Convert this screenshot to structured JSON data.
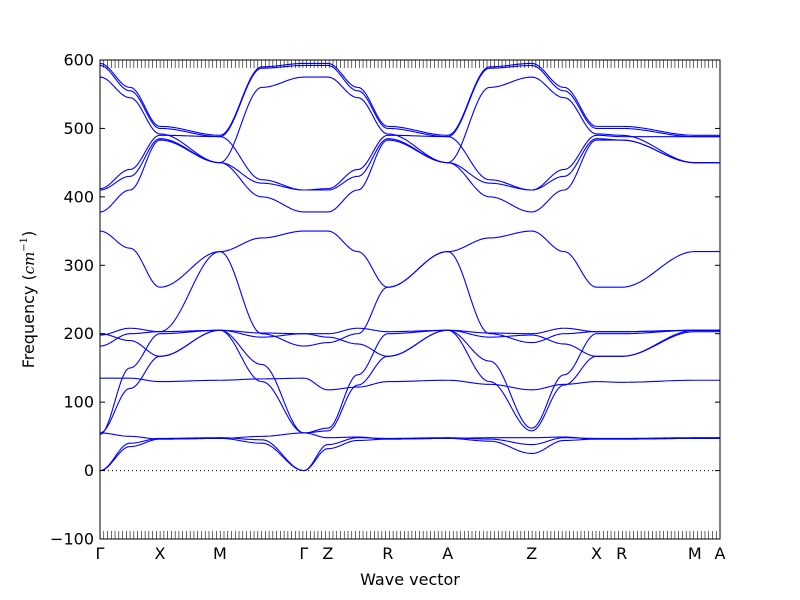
{
  "chart_data": {
    "type": "line",
    "title": "",
    "xlabel": "Wave vector",
    "ylabel": {
      "prefix": "Frequency (",
      "unit_base": "cm",
      "unit_exp": "−1",
      "suffix": ")"
    },
    "ylim": [
      -100,
      600
    ],
    "yticks": [
      -100,
      0,
      100,
      200,
      300,
      400,
      500,
      600
    ],
    "grid": false,
    "legend": "none",
    "zero_line": true,
    "path_points": [
      {
        "label": "Γ",
        "x": 0
      },
      {
        "label": "X",
        "x": 0.5
      },
      {
        "label": "M",
        "x": 1.0
      },
      {
        "label": "Γ",
        "x": 1.7
      },
      {
        "label": "Z",
        "x": 1.9
      },
      {
        "label": "R",
        "x": 2.4
      },
      {
        "label": "A",
        "x": 2.9
      },
      {
        "label": "Z",
        "x": 3.6
      },
      {
        "label": "X",
        "x": 4.14
      },
      {
        "label": "R",
        "x": 4.35
      },
      {
        "label": "M",
        "x": 4.96
      },
      {
        "label": "A",
        "x": 5.17
      }
    ],
    "x_range": [
      0,
      5.17
    ],
    "series_color": "#0000ff",
    "bands": [
      [
        [
          0,
          595
        ],
        [
          0.25,
          560
        ],
        [
          0.5,
          503
        ],
        [
          1.0,
          490
        ],
        [
          1.35,
          590
        ],
        [
          1.7,
          595
        ],
        [
          1.9,
          595
        ],
        [
          2.15,
          560
        ],
        [
          2.4,
          503
        ],
        [
          2.9,
          490
        ],
        [
          3.25,
          590
        ],
        [
          3.6,
          595
        ],
        [
          3.87,
          560
        ],
        [
          4.14,
          503
        ],
        [
          4.35,
          503
        ],
        [
          4.96,
          490
        ],
        [
          5.17,
          490
        ]
      ],
      [
        [
          0,
          592
        ],
        [
          0.25,
          555
        ],
        [
          0.5,
          500
        ],
        [
          1.0,
          488
        ],
        [
          1.35,
          588
        ],
        [
          1.7,
          592
        ],
        [
          1.9,
          592
        ],
        [
          2.15,
          555
        ],
        [
          2.4,
          500
        ],
        [
          2.9,
          488
        ],
        [
          3.25,
          588
        ],
        [
          3.6,
          592
        ],
        [
          3.87,
          555
        ],
        [
          4.14,
          500
        ],
        [
          4.35,
          500
        ],
        [
          4.96,
          488
        ],
        [
          5.17,
          488
        ]
      ],
      [
        [
          0,
          575
        ],
        [
          0.25,
          545
        ],
        [
          0.5,
          492
        ],
        [
          1.0,
          450
        ],
        [
          1.35,
          560
        ],
        [
          1.7,
          575
        ],
        [
          1.9,
          575
        ],
        [
          2.15,
          545
        ],
        [
          2.4,
          492
        ],
        [
          2.9,
          450
        ],
        [
          3.25,
          560
        ],
        [
          3.6,
          575
        ],
        [
          3.87,
          545
        ],
        [
          4.14,
          492
        ],
        [
          4.35,
          490
        ],
        [
          4.96,
          450
        ],
        [
          5.17,
          450
        ]
      ],
      [
        [
          0,
          412
        ],
        [
          0.25,
          440
        ],
        [
          0.5,
          490
        ],
        [
          1.0,
          488
        ],
        [
          1.35,
          425
        ],
        [
          1.7,
          410
        ],
        [
          1.9,
          412
        ],
        [
          2.15,
          440
        ],
        [
          2.4,
          490
        ],
        [
          2.9,
          488
        ],
        [
          3.25,
          425
        ],
        [
          3.6,
          410
        ],
        [
          3.87,
          440
        ],
        [
          4.14,
          490
        ],
        [
          4.35,
          488
        ],
        [
          4.96,
          488
        ],
        [
          5.17,
          488
        ]
      ],
      [
        [
          0,
          410
        ],
        [
          0.25,
          430
        ],
        [
          0.5,
          485
        ],
        [
          1.0,
          450
        ],
        [
          1.35,
          420
        ],
        [
          1.7,
          410
        ],
        [
          1.9,
          410
        ],
        [
          2.15,
          430
        ],
        [
          2.4,
          485
        ],
        [
          2.9,
          450
        ],
        [
          3.25,
          420
        ],
        [
          3.6,
          410
        ],
        [
          3.87,
          430
        ],
        [
          4.14,
          485
        ],
        [
          4.35,
          483
        ],
        [
          4.96,
          450
        ],
        [
          5.17,
          450
        ]
      ],
      [
        [
          0,
          378
        ],
        [
          0.25,
          410
        ],
        [
          0.5,
          483
        ],
        [
          1.0,
          450
        ],
        [
          1.35,
          400
        ],
        [
          1.7,
          378
        ],
        [
          1.9,
          378
        ],
        [
          2.15,
          410
        ],
        [
          2.4,
          483
        ],
        [
          2.9,
          450
        ],
        [
          3.25,
          400
        ],
        [
          3.6,
          378
        ],
        [
          3.87,
          410
        ],
        [
          4.14,
          483
        ],
        [
          4.35,
          483
        ],
        [
          4.96,
          450
        ],
        [
          5.17,
          450
        ]
      ],
      [
        [
          0,
          350
        ],
        [
          0.25,
          325
        ],
        [
          0.5,
          268
        ],
        [
          1.0,
          320
        ],
        [
          1.35,
          340
        ],
        [
          1.7,
          350
        ],
        [
          1.9,
          350
        ],
        [
          2.15,
          320
        ],
        [
          2.4,
          268
        ],
        [
          2.9,
          320
        ],
        [
          3.25,
          340
        ],
        [
          3.6,
          350
        ],
        [
          3.87,
          320
        ],
        [
          4.14,
          268
        ],
        [
          4.35,
          268
        ],
        [
          4.96,
          320
        ],
        [
          5.17,
          320
        ]
      ],
      [
        [
          0,
          198
        ],
        [
          0.25,
          208
        ],
        [
          0.5,
          203
        ],
        [
          1.0,
          205
        ],
        [
          1.35,
          201
        ],
        [
          1.7,
          200
        ],
        [
          1.9,
          200
        ],
        [
          2.15,
          208
        ],
        [
          2.4,
          203
        ],
        [
          2.9,
          205
        ],
        [
          3.25,
          201
        ],
        [
          3.6,
          200
        ],
        [
          3.87,
          208
        ],
        [
          4.14,
          203
        ],
        [
          4.35,
          203
        ],
        [
          4.96,
          205
        ],
        [
          5.17,
          205
        ]
      ],
      [
        [
          0,
          200
        ],
        [
          0.25,
          190
        ],
        [
          0.5,
          167
        ],
        [
          1.0,
          205
        ],
        [
          1.35,
          195
        ],
        [
          1.7,
          200
        ],
        [
          1.9,
          195
        ],
        [
          2.15,
          185
        ],
        [
          2.4,
          167
        ],
        [
          2.9,
          205
        ],
        [
          3.25,
          195
        ],
        [
          3.6,
          198
        ],
        [
          3.87,
          185
        ],
        [
          4.14,
          167
        ],
        [
          4.35,
          167
        ],
        [
          4.96,
          203
        ],
        [
          5.17,
          203
        ]
      ],
      [
        [
          0,
          182
        ],
        [
          0.25,
          200
        ],
        [
          0.5,
          203
        ],
        [
          1.0,
          320
        ],
        [
          1.35,
          200
        ],
        [
          1.7,
          182
        ],
        [
          1.9,
          187
        ],
        [
          2.15,
          200
        ],
        [
          2.4,
          268
        ],
        [
          2.9,
          320
        ],
        [
          3.25,
          200
        ],
        [
          3.6,
          187
        ],
        [
          3.87,
          200
        ],
        [
          4.14,
          203
        ],
        [
          4.35,
          203
        ],
        [
          4.96,
          205
        ],
        [
          5.17,
          205
        ]
      ],
      [
        [
          0,
          135
        ],
        [
          0.25,
          135
        ],
        [
          0.5,
          130
        ],
        [
          1.0,
          132
        ],
        [
          1.35,
          134
        ],
        [
          1.7,
          135
        ],
        [
          1.9,
          118
        ],
        [
          2.15,
          122
        ],
        [
          2.4,
          130
        ],
        [
          2.9,
          132
        ],
        [
          3.25,
          126
        ],
        [
          3.6,
          118
        ],
        [
          3.87,
          126
        ],
        [
          4.14,
          130
        ],
        [
          4.35,
          129
        ],
        [
          4.96,
          132
        ],
        [
          5.17,
          132
        ]
      ],
      [
        [
          0,
          53
        ],
        [
          0.25,
          150
        ],
        [
          0.5,
          200
        ],
        [
          1.0,
          205
        ],
        [
          1.35,
          155
        ],
        [
          1.7,
          55
        ],
        [
          1.9,
          62
        ],
        [
          2.15,
          140
        ],
        [
          2.4,
          200
        ],
        [
          2.9,
          205
        ],
        [
          3.25,
          160
        ],
        [
          3.6,
          62
        ],
        [
          3.87,
          140
        ],
        [
          4.14,
          200
        ],
        [
          4.35,
          200
        ],
        [
          4.96,
          205
        ],
        [
          5.17,
          205
        ]
      ],
      [
        [
          0,
          55
        ],
        [
          0.25,
          120
        ],
        [
          0.5,
          167
        ],
        [
          1.0,
          205
        ],
        [
          1.35,
          130
        ],
        [
          1.7,
          55
        ],
        [
          1.9,
          58
        ],
        [
          2.15,
          125
        ],
        [
          2.4,
          167
        ],
        [
          2.9,
          205
        ],
        [
          3.25,
          130
        ],
        [
          3.6,
          58
        ],
        [
          3.87,
          125
        ],
        [
          4.14,
          167
        ],
        [
          4.35,
          167
        ],
        [
          4.96,
          205
        ],
        [
          5.17,
          205
        ]
      ],
      [
        [
          0,
          55
        ],
        [
          0.25,
          50
        ],
        [
          0.5,
          46
        ],
        [
          1.0,
          47
        ],
        [
          1.35,
          50
        ],
        [
          1.7,
          55
        ],
        [
          1.9,
          48
        ],
        [
          2.15,
          49
        ],
        [
          2.4,
          46
        ],
        [
          2.9,
          47
        ],
        [
          3.25,
          48
        ],
        [
          3.6,
          48
        ],
        [
          3.87,
          49
        ],
        [
          4.14,
          46
        ],
        [
          4.35,
          46
        ],
        [
          4.96,
          47
        ],
        [
          5.17,
          47
        ]
      ],
      [
        [
          0,
          0
        ],
        [
          0.25,
          35
        ],
        [
          0.5,
          46
        ],
        [
          1.0,
          47
        ],
        [
          1.35,
          40
        ],
        [
          1.7,
          0
        ],
        [
          1.9,
          32
        ],
        [
          2.15,
          44
        ],
        [
          2.4,
          46
        ],
        [
          2.9,
          47
        ],
        [
          3.25,
          43
        ],
        [
          3.6,
          25
        ],
        [
          3.87,
          44
        ],
        [
          4.14,
          46
        ],
        [
          4.35,
          46
        ],
        [
          4.96,
          47
        ],
        [
          5.17,
          47
        ]
      ],
      [
        [
          0,
          0
        ],
        [
          0.25,
          40
        ],
        [
          0.5,
          47
        ],
        [
          1.0,
          48
        ],
        [
          1.35,
          45
        ],
        [
          1.7,
          0
        ],
        [
          1.9,
          38
        ],
        [
          2.15,
          48
        ],
        [
          2.4,
          47
        ],
        [
          2.9,
          48
        ],
        [
          3.25,
          46
        ],
        [
          3.6,
          38
        ],
        [
          3.87,
          48
        ],
        [
          4.14,
          47
        ],
        [
          4.35,
          47
        ],
        [
          4.96,
          48
        ],
        [
          5.17,
          48
        ]
      ]
    ]
  }
}
